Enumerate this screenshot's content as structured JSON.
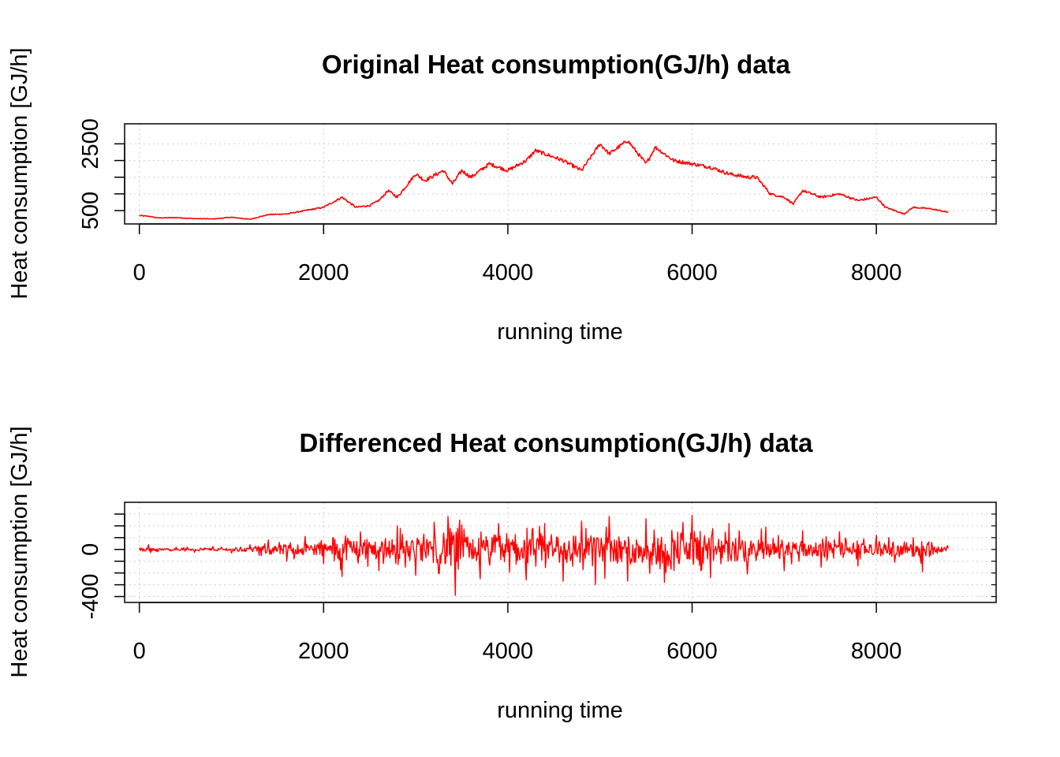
{
  "chart_data": [
    {
      "type": "line",
      "title": "Original Heat consumption(GJ/h) data",
      "xlabel": "running time",
      "ylabel": "Heat consumption [GJ/h]",
      "xlim": [
        -160,
        9300
      ],
      "ylim": [
        100,
        3100
      ],
      "x_ticks": [
        0,
        2000,
        4000,
        6000,
        8000
      ],
      "x_tick_labels": [
        "0",
        "2000",
        "4000",
        "6000",
        "8000"
      ],
      "y_ticks": [
        500,
        1000,
        1500,
        2000,
        2500
      ],
      "y_tick_labels": [
        "500",
        "2500"
      ],
      "grid": true,
      "series": [
        {
          "name": "Heat consumption",
          "color": "#ff0000",
          "x": [
            0,
            100,
            200,
            400,
            600,
            800,
            1000,
            1200,
            1400,
            1600,
            1800,
            2000,
            2100,
            2200,
            2350,
            2500,
            2600,
            2700,
            2800,
            3000,
            3100,
            3300,
            3400,
            3500,
            3600,
            3800,
            4000,
            4200,
            4300,
            4400,
            4600,
            4800,
            5000,
            5100,
            5300,
            5500,
            5600,
            5800,
            6000,
            6200,
            6400,
            6600,
            6700,
            6850,
            7000,
            7100,
            7200,
            7400,
            7600,
            7800,
            8000,
            8100,
            8200,
            8300,
            8400,
            8600,
            8780
          ],
          "y": [
            350,
            330,
            280,
            290,
            260,
            250,
            300,
            240,
            380,
            400,
            500,
            600,
            750,
            900,
            600,
            650,
            800,
            1100,
            900,
            1600,
            1400,
            1700,
            1300,
            1700,
            1500,
            1900,
            1700,
            2000,
            2300,
            2200,
            2000,
            1700,
            2500,
            2200,
            2600,
            1900,
            2400,
            2000,
            1900,
            1800,
            1600,
            1500,
            1500,
            1000,
            900,
            700,
            1100,
            900,
            1000,
            800,
            900,
            600,
            500,
            400,
            600,
            550,
            450
          ]
        }
      ]
    },
    {
      "type": "line",
      "title": "Differenced Heat consumption(GJ/h) data",
      "xlabel": "running time",
      "ylabel": "Heat consumption [GJ/h]",
      "xlim": [
        -160,
        9300
      ],
      "ylim": [
        -450,
        400
      ],
      "x_ticks": [
        0,
        2000,
        4000,
        6000,
        8000
      ],
      "x_tick_labels": [
        "0",
        "2000",
        "4000",
        "6000",
        "8000"
      ],
      "y_ticks": [
        -400,
        -300,
        -200,
        -100,
        0,
        100,
        200,
        300
      ],
      "y_tick_labels": [
        "-400",
        "0"
      ],
      "grid": true,
      "series": [
        {
          "name": "Differenced heat consumption",
          "color": "#ff0000",
          "x": [
            0,
            100,
            200,
            400,
            600,
            800,
            1000,
            1200,
            1300,
            1400,
            1600,
            1800,
            2000,
            2100,
            2200,
            2400,
            2600,
            2800,
            3000,
            3200,
            3350,
            3430,
            3500,
            3700,
            3900,
            4200,
            4400,
            4600,
            4800,
            4950,
            5100,
            5300,
            5500,
            5700,
            5900,
            6000,
            6200,
            6400,
            6600,
            6800,
            7000,
            7200,
            7400,
            7600,
            7800,
            8000,
            8200,
            8400,
            8500,
            8600,
            8780
          ],
          "y": [
            0,
            40,
            -20,
            20,
            -25,
            25,
            -30,
            40,
            -50,
            80,
            -100,
            110,
            -120,
            100,
            -230,
            150,
            -180,
            200,
            -220,
            230,
            280,
            -390,
            210,
            -250,
            220,
            -260,
            220,
            -270,
            240,
            -300,
            280,
            -270,
            260,
            -280,
            230,
            290,
            -240,
            220,
            -210,
            190,
            -180,
            160,
            -150,
            150,
            -140,
            120,
            -110,
            100,
            -190,
            60,
            10
          ]
        }
      ]
    }
  ]
}
